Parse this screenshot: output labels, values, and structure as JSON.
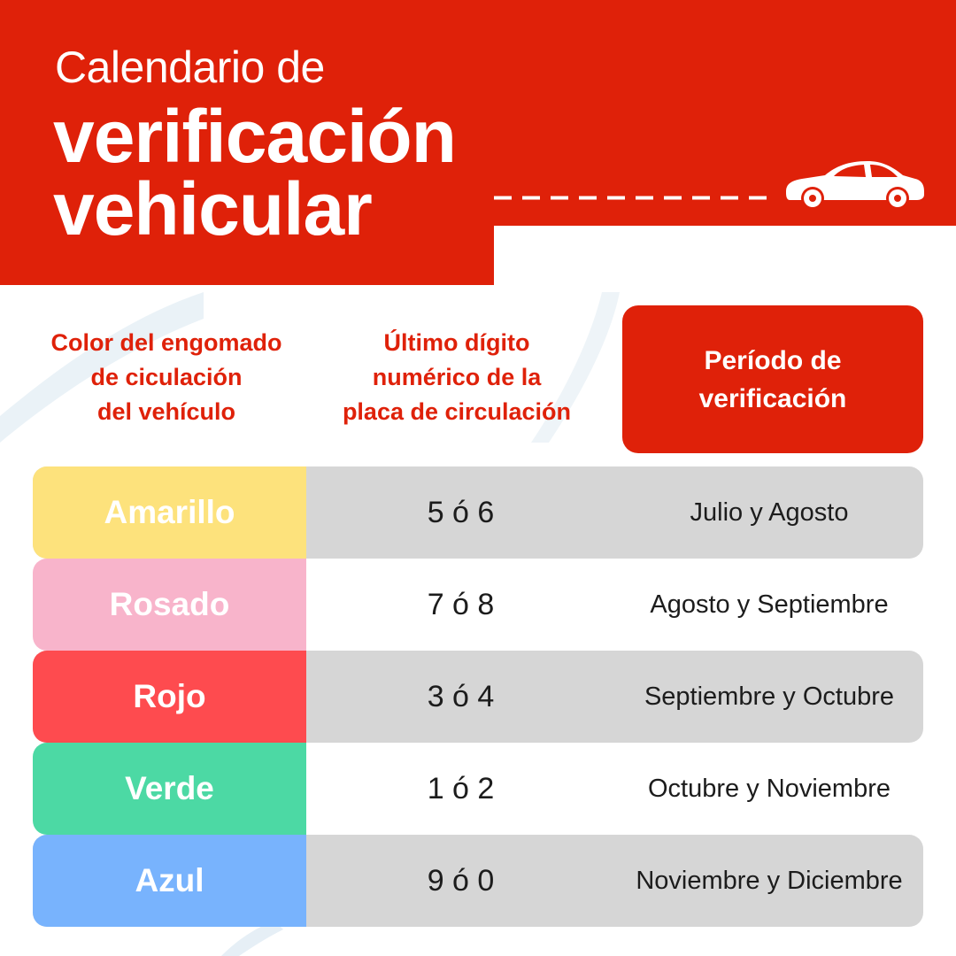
{
  "header": {
    "title_line1": "Calendario de",
    "title_line2": "verificación",
    "title_line3": "vehicular",
    "icon": "car-icon"
  },
  "columns": {
    "col1": [
      "Color del engomado",
      "de ciculación",
      "del vehículo"
    ],
    "col2": [
      "Último dígito",
      "numérico de la",
      "placa de circulación"
    ],
    "col3": [
      "Período de",
      "verificación"
    ]
  },
  "rows": [
    {
      "color": "Amarillo",
      "digits": "5 ó 6",
      "period": "Julio y Agosto",
      "swatch_color": "#fde27c",
      "shaded": true
    },
    {
      "color": "Rosado",
      "digits": "7 ó 8",
      "period": "Agosto y Septiembre",
      "swatch_color": "#f8b4cb",
      "shaded": false
    },
    {
      "color": "Rojo",
      "digits": "3 ó 4",
      "period": "Septiembre y Octubre",
      "swatch_color": "#fe4b4f",
      "shaded": true
    },
    {
      "color": "Verde",
      "digits": "1 ó 2",
      "period": "Octubre y Noviembre",
      "swatch_color": "#4cd9a4",
      "shaded": false
    },
    {
      "color": "Azul",
      "digits": "9 ó 0",
      "period": "Noviembre y Diciembre",
      "swatch_color": "#78b3fd",
      "shaded": true
    }
  ],
  "colors": {
    "brand_red": "#df2109",
    "row_gray": "#d6d6d6",
    "text_dark": "#1c1c1c"
  }
}
